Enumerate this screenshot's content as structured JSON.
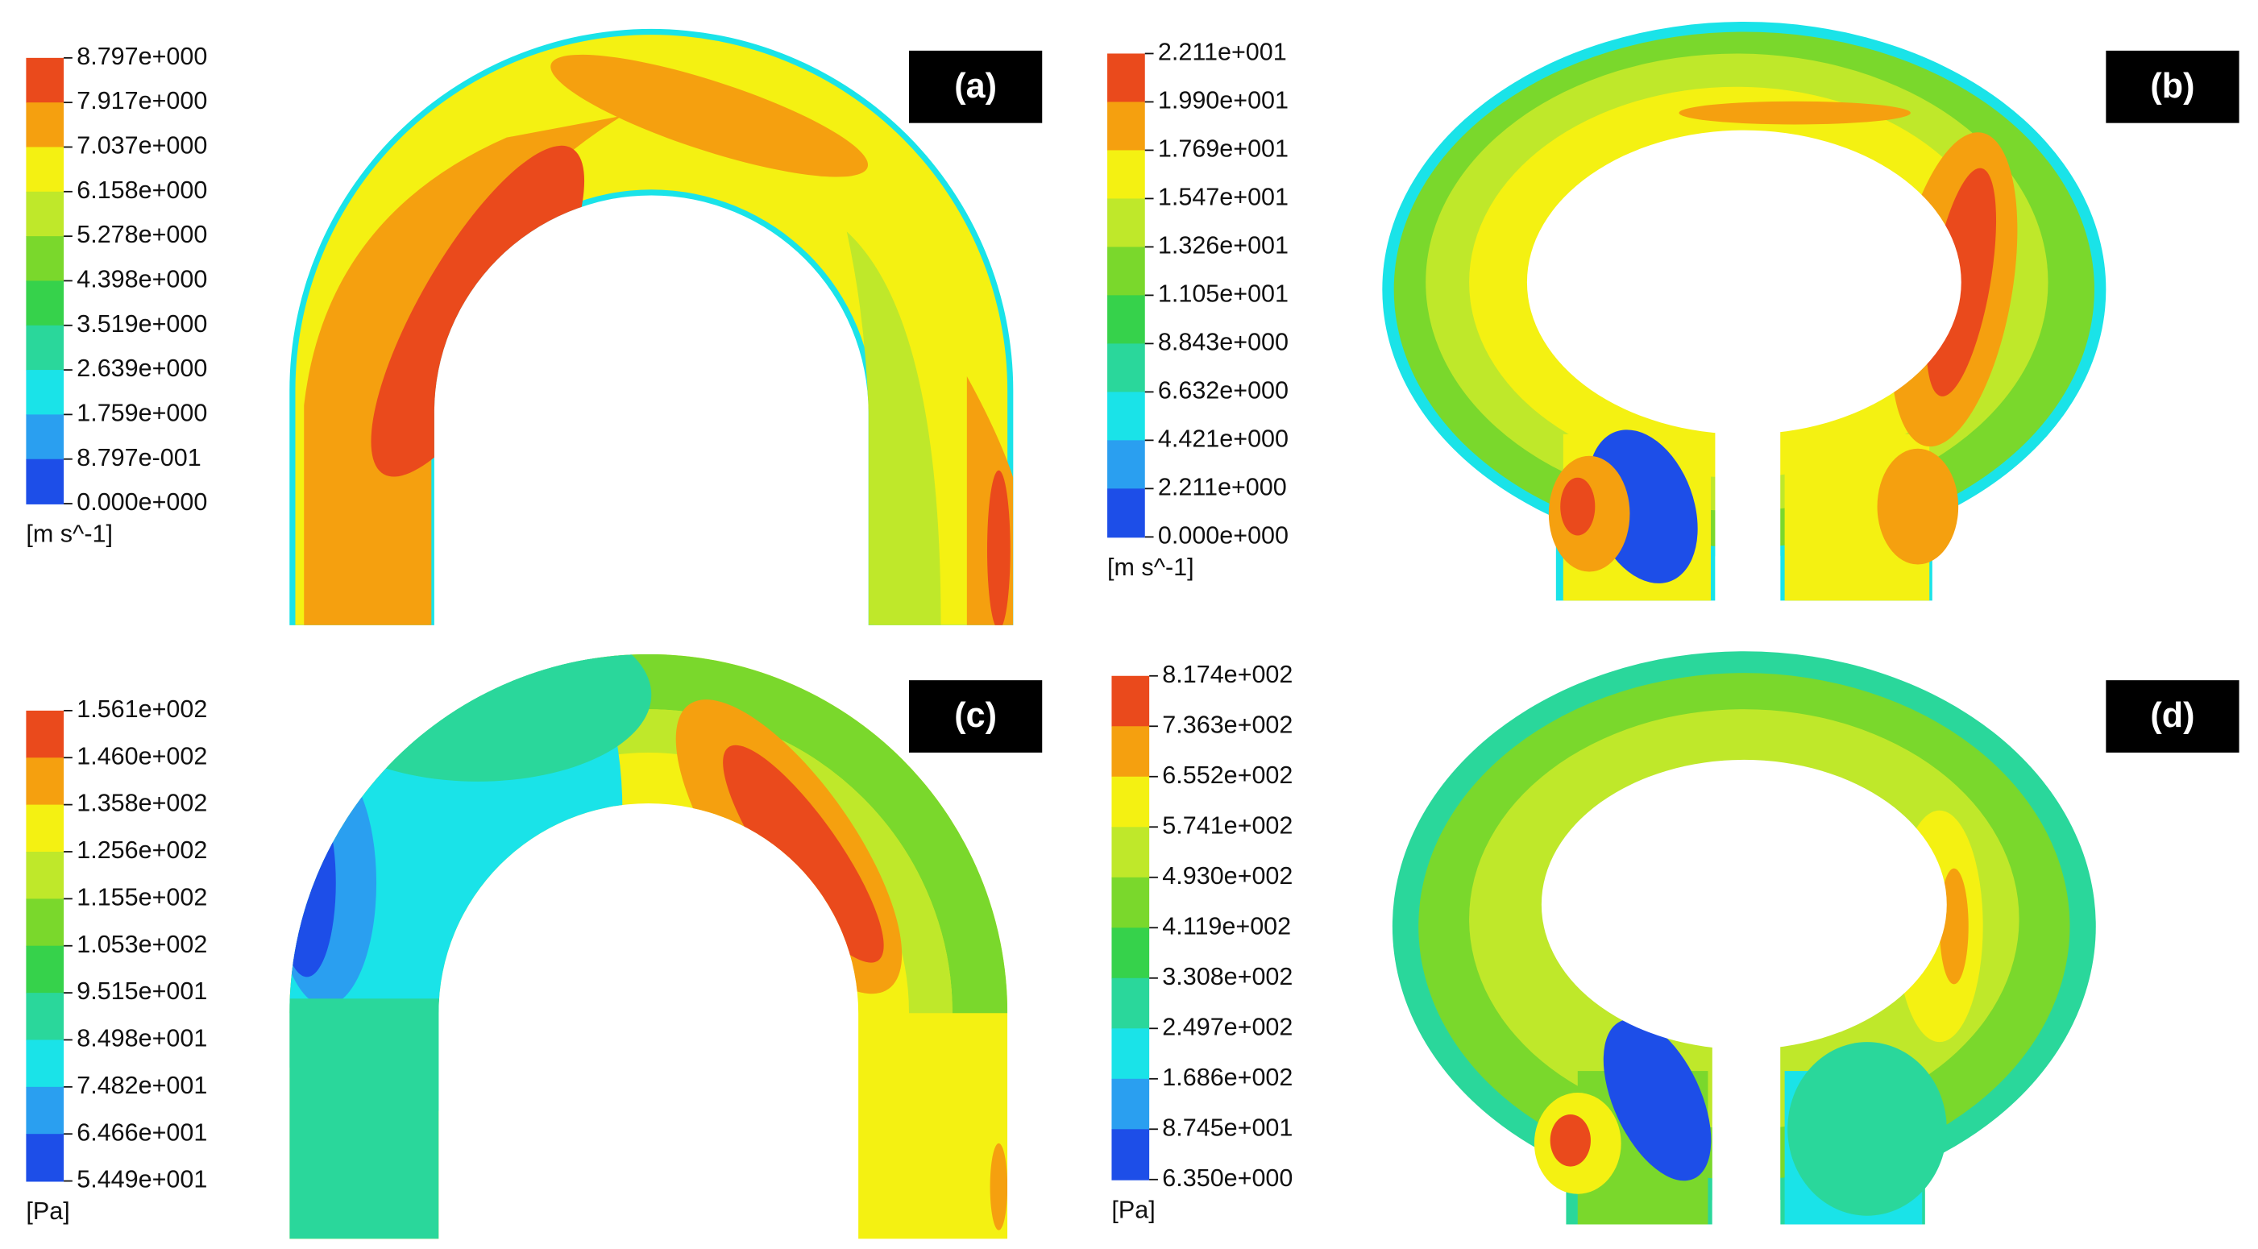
{
  "panels": [
    {
      "label": "(a)",
      "legend": {
        "ticks": [
          "8.797e+000",
          "7.917e+000",
          "7.037e+000",
          "6.158e+000",
          "5.278e+000",
          "4.398e+000",
          "3.519e+000",
          "2.639e+000",
          "1.759e+000",
          "8.797e-001",
          "0.000e+000"
        ],
        "unit": "[m s^-1]"
      }
    },
    {
      "label": "(b)",
      "legend": {
        "ticks": [
          "2.211e+001",
          "1.990e+001",
          "1.769e+001",
          "1.547e+001",
          "1.326e+001",
          "1.105e+001",
          "8.843e+000",
          "6.632e+000",
          "4.421e+000",
          "2.211e+000",
          "0.000e+000"
        ],
        "unit": "[m s^-1]"
      }
    },
    {
      "label": "(c)",
      "legend": {
        "ticks": [
          "1.561e+002",
          "1.460e+002",
          "1.358e+002",
          "1.256e+002",
          "1.155e+002",
          "1.053e+002",
          "9.515e+001",
          "8.498e+001",
          "7.482e+001",
          "6.466e+001",
          "5.449e+001"
        ],
        "unit": "[Pa]"
      }
    },
    {
      "label": "(d)",
      "legend": {
        "ticks": [
          "8.174e+002",
          "7.363e+002",
          "6.552e+002",
          "5.741e+002",
          "4.930e+002",
          "4.119e+002",
          "3.308e+002",
          "2.497e+002",
          "1.686e+002",
          "8.745e+001",
          "6.350e+000"
        ],
        "unit": "[Pa]"
      }
    }
  ]
}
